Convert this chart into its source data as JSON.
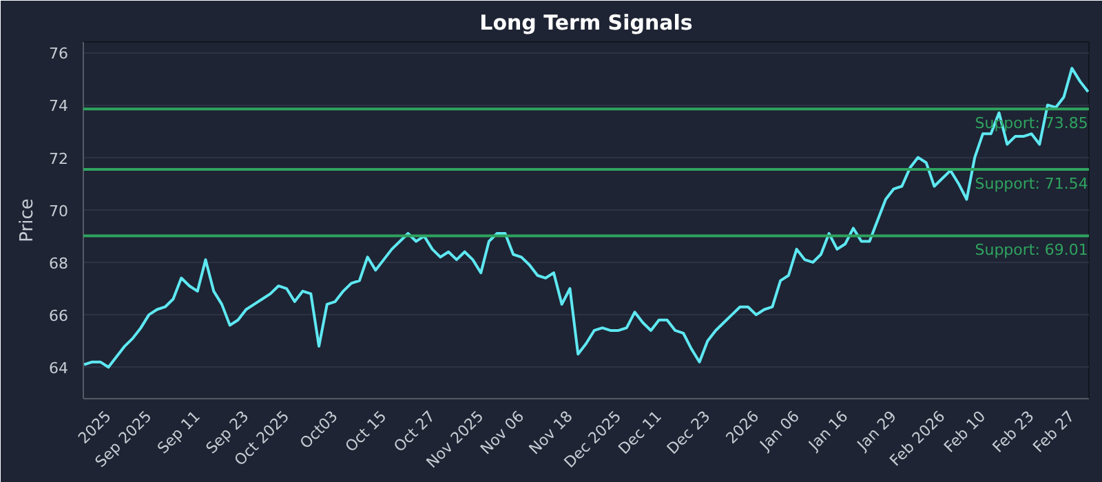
{
  "chart_data": {
    "type": "line",
    "title": "Long Term Signals",
    "ylabel": "Price",
    "categories": [
      null,
      null,
      null,
      "2025",
      null,
      null,
      null,
      null,
      "Sep 2025",
      null,
      null,
      null,
      null,
      null,
      "Sep 11",
      null,
      null,
      null,
      null,
      null,
      "Sep 23",
      null,
      null,
      null,
      null,
      "Oct 2025",
      null,
      null,
      null,
      null,
      null,
      "Oct03",
      null,
      null,
      null,
      null,
      null,
      "Oct 15",
      null,
      null,
      null,
      null,
      null,
      "Oct 27",
      null,
      null,
      null,
      null,
      null,
      "Nov 2025",
      null,
      null,
      null,
      null,
      "Nov 06",
      null,
      null,
      null,
      null,
      null,
      "Nov 18",
      null,
      null,
      null,
      null,
      null,
      "Dec 2025",
      null,
      null,
      null,
      null,
      "Dec 11",
      null,
      null,
      null,
      null,
      null,
      "Dec 23",
      null,
      null,
      null,
      null,
      null,
      "2026",
      null,
      null,
      null,
      null,
      "Jan 06",
      null,
      null,
      null,
      null,
      null,
      "Jan 16",
      null,
      null,
      null,
      null,
      null,
      "Jan 29",
      null,
      null,
      null,
      null,
      null,
      "Feb 2026",
      null,
      null,
      null,
      null,
      "Feb 10",
      null,
      null,
      null,
      null,
      null,
      "Feb 23",
      null,
      null,
      null,
      null,
      "Feb 27",
      null,
      null
    ],
    "series": [
      {
        "color": "#5ee8f2",
        "values": [
          64.1,
          64.2,
          64.2,
          64.0,
          64.4,
          64.8,
          65.1,
          65.5,
          66.0,
          66.2,
          66.3,
          66.6,
          67.4,
          67.1,
          66.9,
          68.1,
          66.9,
          66.4,
          65.6,
          65.8,
          66.2,
          66.4,
          66.6,
          66.8,
          67.1,
          67.0,
          66.5,
          66.9,
          66.8,
          64.8,
          66.4,
          66.5,
          66.9,
          67.2,
          67.3,
          68.2,
          67.7,
          68.1,
          68.5,
          68.8,
          69.1,
          68.8,
          69.0,
          68.5,
          68.2,
          68.4,
          68.1,
          68.4,
          68.1,
          67.6,
          68.8,
          69.1,
          69.1,
          68.3,
          68.2,
          67.9,
          67.5,
          67.4,
          67.6,
          66.4,
          67.0,
          64.5,
          64.9,
          65.4,
          65.5,
          65.4,
          65.4,
          65.5,
          66.1,
          65.7,
          65.4,
          65.8,
          65.8,
          65.4,
          65.3,
          64.7,
          64.2,
          65.0,
          65.4,
          65.7,
          66.0,
          66.3,
          66.3,
          66.0,
          66.2,
          66.3,
          67.3,
          67.5,
          68.5,
          68.1,
          68.0,
          68.3,
          69.1,
          68.5,
          68.7,
          69.3,
          68.8,
          68.8,
          69.6,
          70.4,
          70.8,
          70.9,
          71.6,
          72.0,
          71.8,
          70.9,
          71.2,
          71.5,
          71.0,
          70.4,
          72.0,
          72.9,
          72.9,
          73.7,
          72.5,
          72.8,
          72.8,
          72.9,
          72.5,
          74.0,
          73.9,
          74.3,
          75.4,
          74.9,
          74.5
        ]
      }
    ],
    "ylim": [
      62.8,
      76.4
    ],
    "yticks": [
      64,
      66,
      68,
      70,
      72,
      74,
      76
    ],
    "grid": "y",
    "line_style": "solid",
    "marker": "none",
    "ref_lines": [
      {
        "axis": "y",
        "value": 73.85,
        "label": "Support: 73.85",
        "color": "#2fa35f"
      },
      {
        "axis": "y",
        "value": 71.54,
        "label": "Support: 71.54",
        "color": "#2fa35f"
      },
      {
        "axis": "y",
        "value": 69.01,
        "label": "Support: 69.01",
        "color": "#2fa35f"
      }
    ]
  }
}
